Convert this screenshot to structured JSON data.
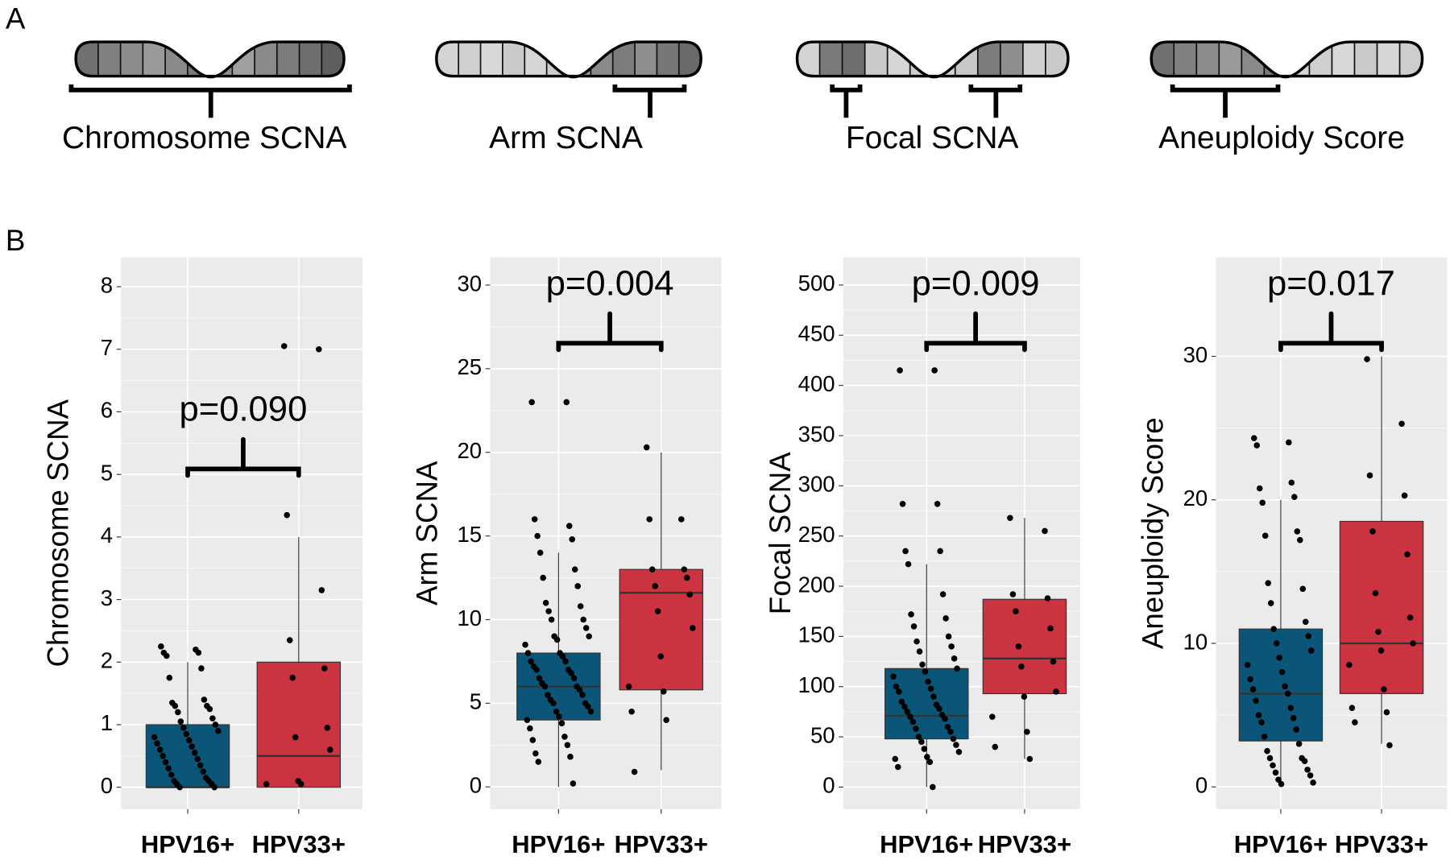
{
  "panel_a": {
    "label": "A",
    "items": [
      "Chromosome SCNA",
      "Arm SCNA",
      "Focal SCNA",
      "Aneuploidy Score"
    ]
  },
  "panel_b": {
    "label": "B"
  },
  "chart_data": [
    {
      "type": "box",
      "ylabel": "Chromosome SCNA",
      "annotation": "p=0.090",
      "ylim": [
        -0.35,
        8.47
      ],
      "yticks": [
        0,
        1,
        2,
        3,
        4,
        5,
        6,
        7,
        8
      ],
      "grid": true,
      "categories": [
        "HPV16+",
        "HPV33+"
      ],
      "boxes": [
        {
          "color": "#0b5678",
          "whislo": 0,
          "q1": 0,
          "med": 0,
          "q3": 1,
          "whishi": 2,
          "points": [
            2.25,
            2.2,
            2.15,
            2.15,
            2.1,
            1.9,
            1.75,
            1.4,
            1.35,
            1.3,
            1.3,
            1.25,
            1.2,
            1.1,
            1.05,
            1.0,
            0.95,
            0.9,
            0.85,
            0.8,
            0.75,
            0.7,
            0.65,
            0.6,
            0.55,
            0.5,
            0.45,
            0.4,
            0.35,
            0.3,
            0.25,
            0.2,
            0.15,
            0.1,
            0.1,
            0.05,
            0.05,
            0.0,
            0.0
          ]
        },
        {
          "color": "#cc3340",
          "whislo": 0,
          "q1": 0,
          "med": 0.5,
          "q3": 2,
          "whishi": 4,
          "points": [
            7.05,
            7.0,
            4.35,
            3.15,
            2.35,
            1.9,
            1.75,
            0.95,
            0.8,
            0.6,
            0.1,
            0.05,
            0.05
          ]
        }
      ]
    },
    {
      "type": "box",
      "ylabel": "Arm SCNA",
      "annotation": "p=0.004",
      "ylim": [
        -1.33,
        31.66
      ],
      "yticks": [
        0,
        5,
        10,
        15,
        20,
        25,
        30
      ],
      "grid": true,
      "categories": [
        "HPV16+",
        "HPV33+"
      ],
      "boxes": [
        {
          "color": "#0b5678",
          "whislo": 0,
          "q1": 4,
          "med": 6,
          "q3": 8,
          "whishi": 14,
          "points": [
            23,
            23,
            16,
            15.6,
            15,
            14.8,
            14,
            13,
            12.5,
            12,
            11,
            10.8,
            10.5,
            10,
            10,
            9.5,
            9,
            9,
            8.8,
            8.5,
            8,
            8,
            7.8,
            7.5,
            7.5,
            7.2,
            7,
            7,
            6.8,
            6.5,
            6.5,
            6.2,
            6,
            6,
            5.8,
            5.5,
            5.5,
            5.2,
            5,
            5,
            4.8,
            4.5,
            4.5,
            4.2,
            4,
            3.8,
            3.5,
            3,
            2.8,
            2.5,
            2,
            1.8,
            1.5,
            0.2
          ]
        },
        {
          "color": "#cc3340",
          "whislo": 1,
          "q1": 5.8,
          "med": 11.6,
          "q3": 13,
          "whishi": 20,
          "points": [
            20.3,
            16,
            16,
            13,
            13,
            12.5,
            12,
            11.5,
            10.5,
            9.5,
            7.8,
            6,
            5.7,
            4.5,
            4,
            0.9
          ]
        }
      ]
    },
    {
      "type": "box",
      "ylabel": "Focal SCNA",
      "annotation": "p=0.009",
      "ylim": [
        -22,
        527.6
      ],
      "yticks": [
        0,
        50,
        100,
        150,
        200,
        250,
        300,
        350,
        400,
        450,
        500
      ],
      "grid": true,
      "categories": [
        "HPV16+",
        "HPV33+"
      ],
      "boxes": [
        {
          "color": "#0b5678",
          "whislo": 0,
          "q1": 48,
          "med": 71,
          "q3": 118,
          "whishi": 222,
          "points": [
            415,
            415,
            282,
            282,
            235,
            235,
            222,
            192,
            172,
            168,
            160,
            150,
            145,
            140,
            135,
            128,
            122,
            118,
            115,
            110,
            105,
            100,
            98,
            95,
            90,
            85,
            82,
            80,
            78,
            75,
            72,
            70,
            68,
            65,
            60,
            58,
            55,
            50,
            48,
            45,
            42,
            38,
            35,
            30,
            28,
            25,
            20,
            0
          ]
        },
        {
          "color": "#cc3340",
          "whislo": 28,
          "q1": 93,
          "med": 128,
          "q3": 187,
          "whishi": 268,
          "points": [
            268,
            255,
            192,
            188,
            175,
            158,
            140,
            125,
            120,
            95,
            90,
            70,
            55,
            40,
            28
          ]
        }
      ]
    },
    {
      "type": "box",
      "ylabel": "Aneuploidy Score",
      "annotation": "p=0.017",
      "ylim": [
        -1.55,
        36.9
      ],
      "yticks": [
        0,
        10,
        20,
        30
      ],
      "grid": true,
      "categories": [
        "HPV16+",
        "HPV33+"
      ],
      "boxes": [
        {
          "color": "#0b5678",
          "whislo": 0.2,
          "q1": 3.2,
          "med": 6.5,
          "q3": 11,
          "whishi": 20,
          "points": [
            24.3,
            24,
            23.8,
            21.2,
            20.8,
            20.2,
            19.8,
            17.8,
            17.5,
            17.2,
            14.2,
            13.8,
            12.8,
            11.5,
            11,
            10.5,
            10,
            9.5,
            9,
            8.5,
            8,
            7.5,
            7,
            6.8,
            6.5,
            6,
            5.5,
            5,
            4.8,
            4.5,
            4,
            3.5,
            3,
            2.5,
            2,
            2,
            1.8,
            1.5,
            1.2,
            1,
            0.8,
            0.5,
            0.3,
            0.2
          ]
        },
        {
          "color": "#cc3340",
          "whislo": 3,
          "q1": 6.5,
          "med": 10,
          "q3": 18.5,
          "whishi": 30,
          "points": [
            29.8,
            25.3,
            21.7,
            20.3,
            17.8,
            16.2,
            13.5,
            11.8,
            10.8,
            10,
            9.5,
            8.5,
            6.8,
            5.5,
            5.2,
            4.5,
            2.9
          ]
        }
      ]
    }
  ]
}
